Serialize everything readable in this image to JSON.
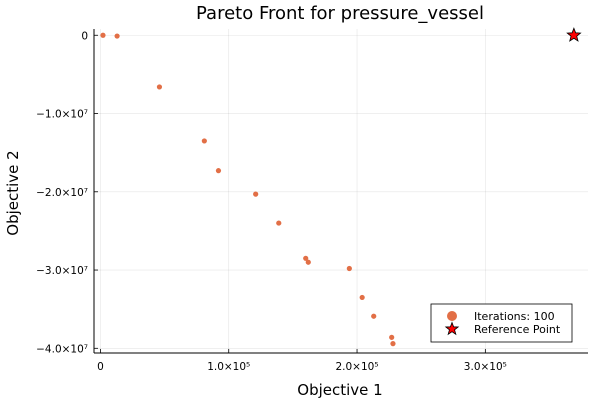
{
  "chart_data": {
    "type": "scatter",
    "title": "Pareto Front for pressure_vessel",
    "xlabel": "Objective 1",
    "ylabel": "Objective 2",
    "xlim": [
      -5000,
      380000
    ],
    "ylim": [
      -40600000,
      800000
    ],
    "grid": true,
    "legend_position": "bottom-right",
    "x_ticks": [
      {
        "value": 0,
        "label": "0"
      },
      {
        "value": 100000,
        "label": "1.0×10⁵"
      },
      {
        "value": 200000,
        "label": "2.0×10⁵"
      },
      {
        "value": 300000,
        "label": "3.0×10⁵"
      }
    ],
    "y_ticks": [
      {
        "value": 0,
        "label": "0"
      },
      {
        "value": -10000000,
        "label": "−1.0×10⁷"
      },
      {
        "value": -20000000,
        "label": "−2.0×10⁷"
      },
      {
        "value": -30000000,
        "label": "−3.0×10⁷"
      },
      {
        "value": -40000000,
        "label": "−4.0×10⁷"
      }
    ],
    "series": [
      {
        "name": "Iterations: 100",
        "marker": "circle",
        "color": "#E26F46",
        "points": [
          [
            2000,
            0
          ],
          [
            13000,
            -100000
          ],
          [
            46000,
            -6600000
          ],
          [
            81000,
            -13500000
          ],
          [
            92000,
            -17300000
          ],
          [
            121000,
            -20300000
          ],
          [
            139000,
            -24000000
          ],
          [
            160000,
            -28500000
          ],
          [
            162000,
            -29000000
          ],
          [
            194000,
            -29800000
          ],
          [
            204000,
            -33500000
          ],
          [
            213000,
            -35900000
          ],
          [
            227000,
            -38600000
          ],
          [
            228000,
            -39400000
          ]
        ]
      },
      {
        "name": "Reference Point",
        "marker": "star",
        "color": "#FF0000",
        "points": [
          [
            369000,
            0
          ]
        ]
      }
    ]
  }
}
